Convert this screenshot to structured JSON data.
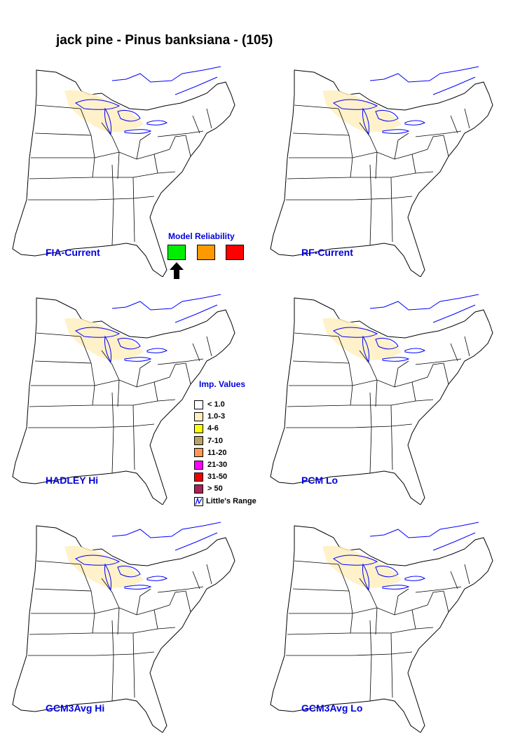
{
  "title": "jack pine - Pinus banksiana - (105)",
  "panels": [
    {
      "label": "FIA-Current"
    },
    {
      "label": "RF-Current"
    },
    {
      "label": "HADLEY Hi"
    },
    {
      "label": "PCM Lo"
    },
    {
      "label": "GCM3Avg Hi"
    },
    {
      "label": "GCM3Avg Lo"
    }
  ],
  "model_reliability": {
    "title": "Model Reliability",
    "colors": [
      "#00ee00",
      "#ff9900",
      "#ff0000"
    ],
    "selected_index": 0,
    "arrow_icon": "up-arrow-icon"
  },
  "importance_legend": {
    "title": "Imp. Values",
    "items": [
      {
        "label": "< 1.0",
        "color": "#ffffff"
      },
      {
        "label": "1.0-3",
        "color": "#ffeec0"
      },
      {
        "label": "4-6",
        "color": "#ffff00"
      },
      {
        "label": "7-10",
        "color": "#b5a36a"
      },
      {
        "label": "11-20",
        "color": "#ff9955"
      },
      {
        "label": "21-30",
        "color": "#ff00ff"
      },
      {
        "label": "31-50",
        "color": "#ee0000"
      },
      {
        "label": "> 50",
        "color": "#aa2255"
      }
    ],
    "range_label": "Little's Range",
    "range_color": "#0000ff"
  }
}
